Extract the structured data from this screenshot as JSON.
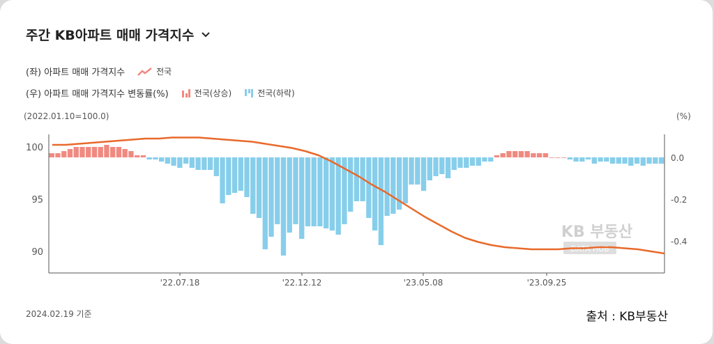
{
  "header": {
    "title": "주간 KB아파트 매매 가격지수"
  },
  "legend": {
    "left_label": "(좌) 아파트 매매 가격지수",
    "left_series": "전국",
    "right_label": "(우) 아파트 매매 가격지수 변동률(%)",
    "rise_series": "전국(상승)",
    "fall_series": "전국(하락)"
  },
  "axes": {
    "left_unit": "(2022.01.10=100.0)",
    "right_unit": "(%)"
  },
  "footer": {
    "as_of": "2024.02.19 기준",
    "source": "출처 : KB부동산"
  },
  "watermark": {
    "text": "KB 부동산",
    "sub": "DATA HUB"
  },
  "colors": {
    "line": "#e8692a",
    "rise": "#f08a80",
    "fall": "#87ceeb",
    "axis": "#555555"
  },
  "chart_data": {
    "type": "bar+line",
    "x_ticks": [
      "'22.07.18",
      "'22.12.12",
      "'23.05.08",
      "'23.09.25"
    ],
    "left_axis": {
      "ticks": [
        100,
        95,
        90
      ],
      "range": [
        88,
        101
      ]
    },
    "right_axis": {
      "ticks": [
        "0.0",
        "-0.2",
        "-0.4"
      ],
      "range": [
        -0.55,
        0.06
      ]
    },
    "bars_pct": [
      0.02,
      0.02,
      0.03,
      0.04,
      0.05,
      0.05,
      0.05,
      0.05,
      0.05,
      0.06,
      0.05,
      0.05,
      0.04,
      0.03,
      0.01,
      0.01,
      -0.01,
      -0.01,
      -0.02,
      -0.03,
      -0.04,
      -0.05,
      -0.03,
      -0.05,
      -0.06,
      -0.06,
      -0.06,
      -0.09,
      -0.22,
      -0.18,
      -0.17,
      -0.16,
      -0.19,
      -0.27,
      -0.29,
      -0.44,
      -0.38,
      -0.32,
      -0.47,
      -0.36,
      -0.32,
      -0.39,
      -0.33,
      -0.33,
      -0.33,
      -0.34,
      -0.35,
      -0.37,
      -0.32,
      -0.26,
      -0.21,
      -0.21,
      -0.29,
      -0.35,
      -0.42,
      -0.28,
      -0.27,
      -0.25,
      -0.22,
      -0.13,
      -0.13,
      -0.16,
      -0.11,
      -0.09,
      -0.08,
      -0.1,
      -0.06,
      -0.05,
      -0.05,
      -0.04,
      -0.04,
      -0.02,
      -0.02,
      0.01,
      0.02,
      0.03,
      0.03,
      0.03,
      0.03,
      0.02,
      0.02,
      0.02,
      0.0,
      0.0,
      0.0,
      -0.01,
      -0.02,
      -0.02,
      -0.01,
      -0.03,
      -0.02,
      -0.02,
      -0.03,
      -0.03,
      -0.03,
      -0.04,
      -0.03,
      -0.04,
      -0.03,
      -0.03,
      -0.03
    ],
    "line_index": [
      100.2,
      100.2,
      100.3,
      100.4,
      100.5,
      100.6,
      100.7,
      100.8,
      100.8,
      100.9,
      100.9,
      100.9,
      100.8,
      100.7,
      100.6,
      100.5,
      100.3,
      100.1,
      99.9,
      99.6,
      99.2,
      98.6,
      97.9,
      97.2,
      96.4,
      95.7,
      94.9,
      94.1,
      93.3,
      92.6,
      91.9,
      91.3,
      90.9,
      90.6,
      90.4,
      90.3,
      90.2,
      90.2,
      90.2,
      90.3,
      90.3,
      90.4,
      90.4,
      90.3,
      90.2,
      90.0,
      89.8
    ]
  }
}
